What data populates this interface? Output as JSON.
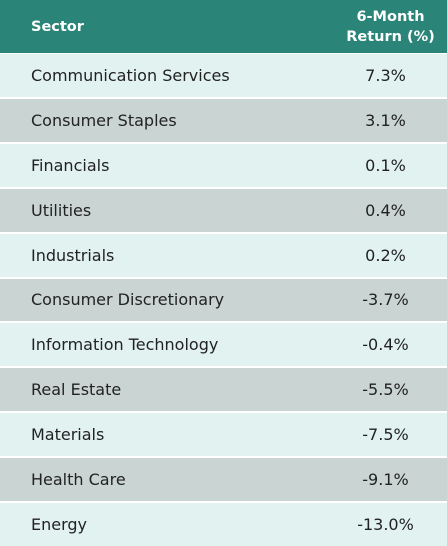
{
  "colors": {
    "header_bg": "#2a8478",
    "row_light": "#e1f2f1",
    "row_dark": "#c9d4d3"
  },
  "chart_data": {
    "type": "table",
    "columns": [
      "Sector",
      "6-Month Return (%)"
    ],
    "header": {
      "sector": "Sector",
      "return_line1": "6-Month",
      "return_line2": "Return (%)"
    },
    "rows": [
      {
        "sector": "Communication Services",
        "value": "7.3%"
      },
      {
        "sector": "Consumer Staples",
        "value": "3.1%"
      },
      {
        "sector": "Financials",
        "value": "0.1%"
      },
      {
        "sector": "Utilities",
        "value": "0.4%"
      },
      {
        "sector": "Industrials",
        "value": "0.2%"
      },
      {
        "sector": "Consumer Discretionary",
        "value": "-3.7%"
      },
      {
        "sector": "Information Technology",
        "value": "-0.4%"
      },
      {
        "sector": "Real Estate",
        "value": "-5.5%"
      },
      {
        "sector": "Materials",
        "value": "-7.5%"
      },
      {
        "sector": "Health Care",
        "value": "-9.1%"
      },
      {
        "sector": "Energy",
        "value": "-13.0%"
      }
    ]
  }
}
